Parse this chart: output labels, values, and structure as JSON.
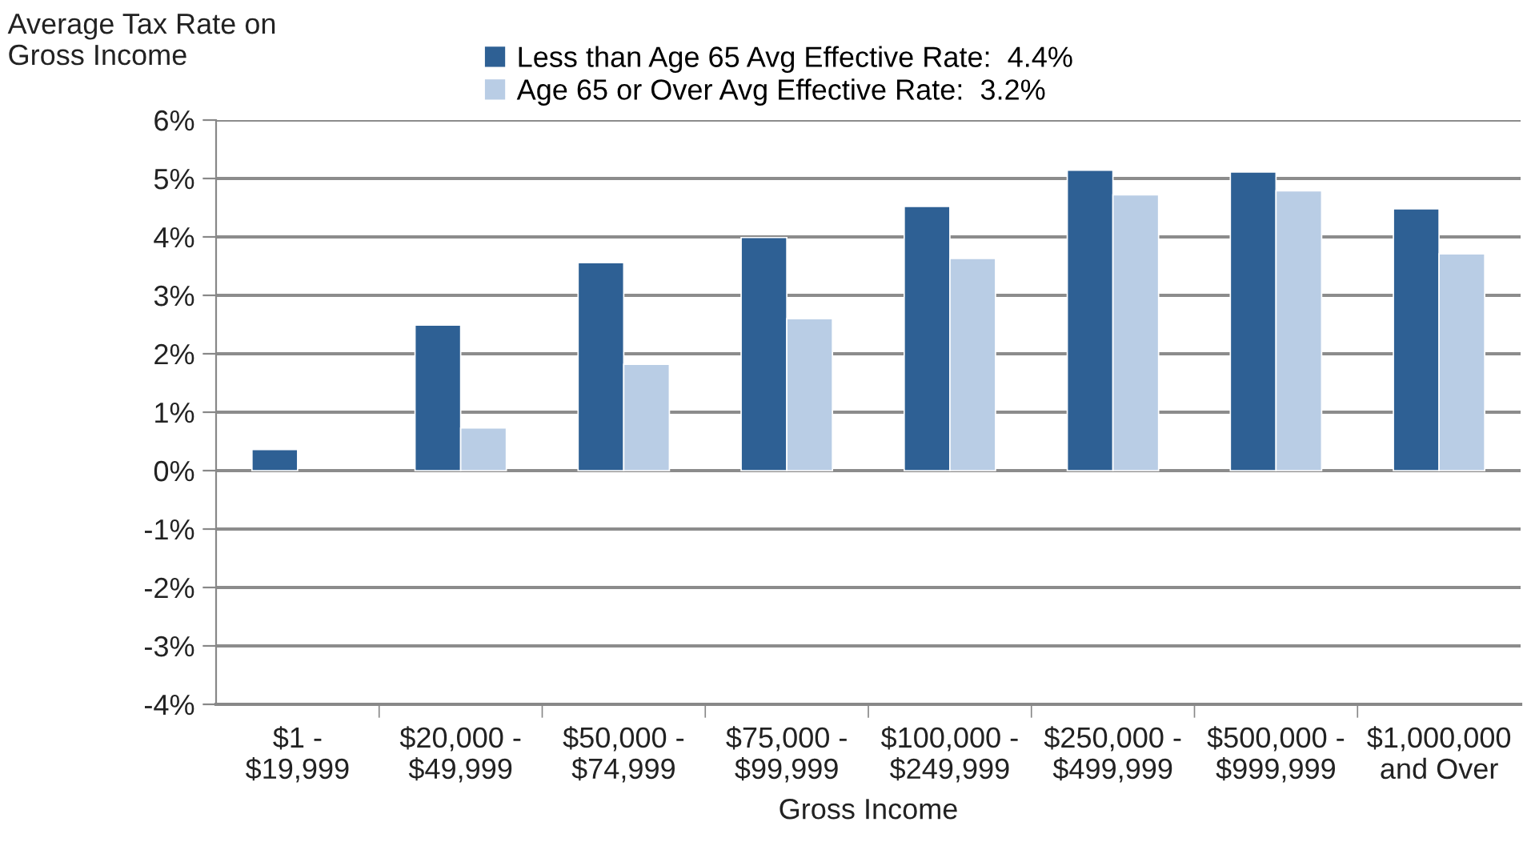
{
  "chart_data": {
    "type": "bar",
    "ylabel": "Average Tax Rate on\nGross Income",
    "xlabel": "Gross Income",
    "categories": [
      "$1 -\n$19,999",
      "$20,000 -\n$49,999",
      "$50,000 -\n$74,999",
      "$75,000 -\n$99,999",
      "$100,000 -\n$249,999",
      "$250,000 -\n$499,999",
      "$500,000 -\n$999,999",
      "$1,000,000\nand Over"
    ],
    "series": [
      {
        "name": "Less than Age 65 Avg Effective Rate:  4.4%",
        "color": "#2e6094",
        "values": [
          0.36,
          2.49,
          3.56,
          3.99,
          4.52,
          5.14,
          5.11,
          4.48
        ]
      },
      {
        "name": "Age 65 or Over Avg Effective Rate:  3.2%",
        "color": "#b9cde5",
        "values": [
          null,
          0.73,
          1.82,
          2.6,
          3.63,
          4.72,
          4.79,
          3.71
        ]
      }
    ],
    "ylim": [
      -4,
      6
    ],
    "yticks": [
      {
        "value": -4,
        "label": "-4%"
      },
      {
        "value": -3,
        "label": "-3%"
      },
      {
        "value": -2,
        "label": "-2%"
      },
      {
        "value": -1,
        "label": "-1%"
      },
      {
        "value": 0,
        "label": "0%"
      },
      {
        "value": 1,
        "label": "1%"
      },
      {
        "value": 2,
        "label": "2%"
      },
      {
        "value": 3,
        "label": "3%"
      },
      {
        "value": 4,
        "label": "4%"
      },
      {
        "value": 5,
        "label": "5%"
      },
      {
        "value": 6,
        "label": "6%"
      }
    ],
    "grid": "y",
    "legend": "top"
  }
}
